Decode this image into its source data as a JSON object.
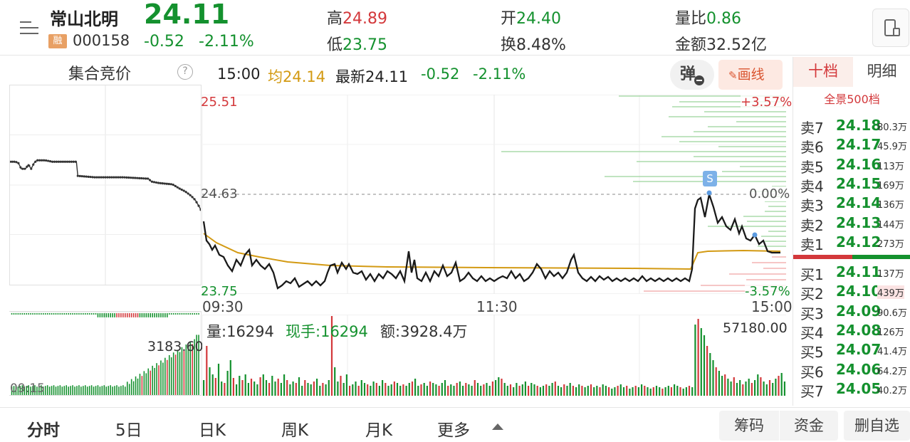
{
  "header": {
    "stock_name": "常山北明",
    "code": "000158",
    "rong_badge": "融",
    "price": "24.11",
    "change": "-0.52",
    "change_pct": "-2.11%",
    "high_label": "高",
    "high": "24.89",
    "low_label": "低",
    "low": "23.75",
    "open_label": "开",
    "open": "24.40",
    "turnover_label": "换",
    "turnover": "8.48%",
    "vol_ratio_label": "量比",
    "vol_ratio": "0.86",
    "amount_label": "金额",
    "amount": "32.52亿"
  },
  "auction": {
    "title": "集合竞价",
    "help_icon": "?",
    "vol_value": "3183.60",
    "time": "09:15"
  },
  "info_bar": {
    "time": "15:00",
    "avg_label": "均",
    "avg": "24.14",
    "latest_label": "最新",
    "latest": "24.11",
    "change": "-0.52",
    "change_pct": "-2.11%",
    "pop_label": "弹",
    "draw_label": "画线"
  },
  "price_chart": {
    "y_top": "25.51",
    "y_mid": "24.63",
    "y_bottom": "23.75",
    "pct_top": "+3.57%",
    "pct_mid": "0.00%",
    "pct_bottom": "-3.57%",
    "x_start": "09:30",
    "x_mid": "11:30",
    "x_end": "15:00",
    "marker": "S"
  },
  "vol_chart": {
    "vol_label": "量:",
    "vol": "16294",
    "now_label": "现手:",
    "now": "16294",
    "amt_label": "额:",
    "amt": "3928.4万",
    "max": "57180.00"
  },
  "book": {
    "tabs": [
      "十档",
      "明细"
    ],
    "full_label": "全景500档",
    "asks": [
      {
        "label": "卖7",
        "price": "24.18",
        "vol": "80.3万"
      },
      {
        "label": "卖6",
        "price": "24.17",
        "vol": "45.9万"
      },
      {
        "label": "卖5",
        "price": "24.16",
        "vol": "113万"
      },
      {
        "label": "卖4",
        "price": "24.15",
        "vol": "169万"
      },
      {
        "label": "卖3",
        "price": "24.14",
        "vol": "136万"
      },
      {
        "label": "卖2",
        "price": "24.13",
        "vol": "144万"
      },
      {
        "label": "卖1",
        "price": "24.12",
        "vol": "273万"
      }
    ],
    "bids": [
      {
        "label": "买1",
        "price": "24.11",
        "vol": "137万"
      },
      {
        "label": "买2",
        "price": "24.10",
        "vol": "439万"
      },
      {
        "label": "买3",
        "price": "24.09",
        "vol": "90.6万"
      },
      {
        "label": "买4",
        "price": "24.08",
        "vol": "126万"
      },
      {
        "label": "买5",
        "price": "24.07",
        "vol": "41.4万"
      },
      {
        "label": "买6",
        "price": "24.06",
        "vol": "64.2万"
      },
      {
        "label": "买7",
        "price": "24.05",
        "vol": "40.2万"
      }
    ]
  },
  "bottom": {
    "tabs": [
      "分时",
      "5日",
      "日K",
      "周K",
      "月K",
      "更多"
    ],
    "btn_chips": "筹码",
    "btn_funds": "资金",
    "btn_remove": "删自选"
  },
  "colors": {
    "up": "#d3383b",
    "down": "#14912e",
    "avg": "#d39a13"
  }
}
